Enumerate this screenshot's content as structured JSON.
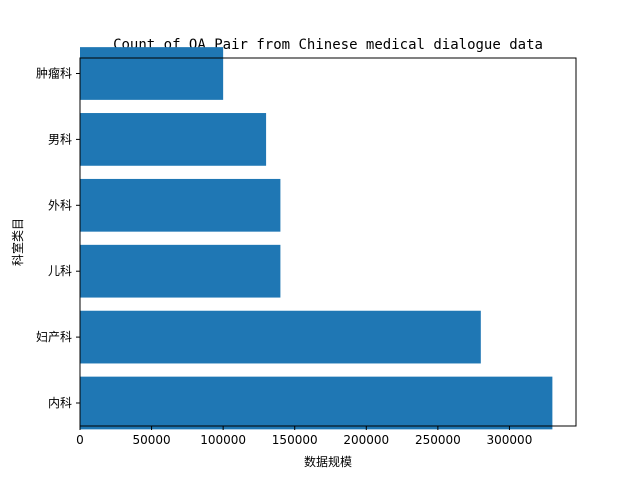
{
  "chart_data": {
    "type": "bar",
    "orientation": "horizontal",
    "title": "Count of QA Pair from Chinese medical dialogue data",
    "xlabel": "数据规模",
    "ylabel": "科室类目",
    "categories": [
      "内科",
      "妇产科",
      "儿科",
      "外科",
      "男科",
      "肿瘤科"
    ],
    "values": [
      330000,
      280000,
      140000,
      140000,
      130000,
      100000
    ],
    "xlim": [
      0,
      346500
    ],
    "xticks": [
      0,
      50000,
      100000,
      150000,
      200000,
      250000,
      300000
    ],
    "bar_color": "#1f77b4",
    "grid": false,
    "legend": "none"
  }
}
